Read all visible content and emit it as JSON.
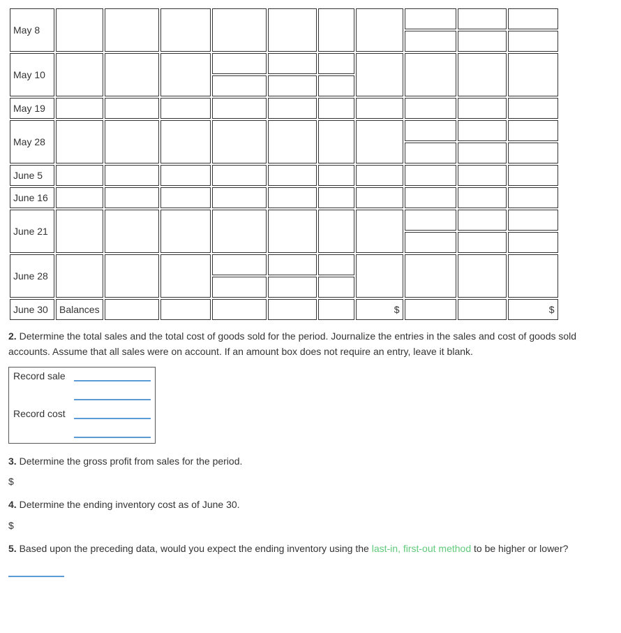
{
  "table": {
    "rows": [
      {
        "label": "May 8",
        "height": "tall",
        "split56": false,
        "split_right": true
      },
      {
        "label": "May 10",
        "height": "med",
        "split56": true,
        "split_right": false
      },
      {
        "label": "May 19",
        "height": "med",
        "split56": false,
        "split_right": false
      },
      {
        "label": "May 28",
        "height": "med",
        "split56": false,
        "split_right": true
      },
      {
        "label": "June 5",
        "height": "short",
        "split56": false,
        "split_right": false
      },
      {
        "label": "June 16",
        "height": "short",
        "split56": false,
        "split_right": false
      },
      {
        "label": "June 21",
        "height": "tall",
        "split56": false,
        "split_right": true
      },
      {
        "label": "June 28",
        "height": "med",
        "split56": true,
        "split_right": false
      }
    ],
    "balances_label": "Balances",
    "balances_date": "June 30",
    "dollar": "$"
  },
  "q2": {
    "prefix": "2.",
    "text": "Determine the total sales and the total cost of goods sold for the period. Journalize the entries in the sales and cost of goods sold accounts. Assume that all sales were on account. If an amount box does not require an entry, leave it blank."
  },
  "journal": {
    "row1": "Record sale",
    "row2": "Record cost"
  },
  "q3": {
    "prefix": "3.",
    "text": " Determine the gross profit from sales for the period.",
    "dollar": "$"
  },
  "q4": {
    "prefix": "4.",
    "text": " Determine the ending inventory cost as of June 30.",
    "dollar": "$"
  },
  "q5": {
    "prefix": "5.",
    "text_before": " Based upon the preceding data, would you expect the ending inventory using the ",
    "link": "last-in, first-out method",
    "text_after": " to be higher or lower?"
  }
}
